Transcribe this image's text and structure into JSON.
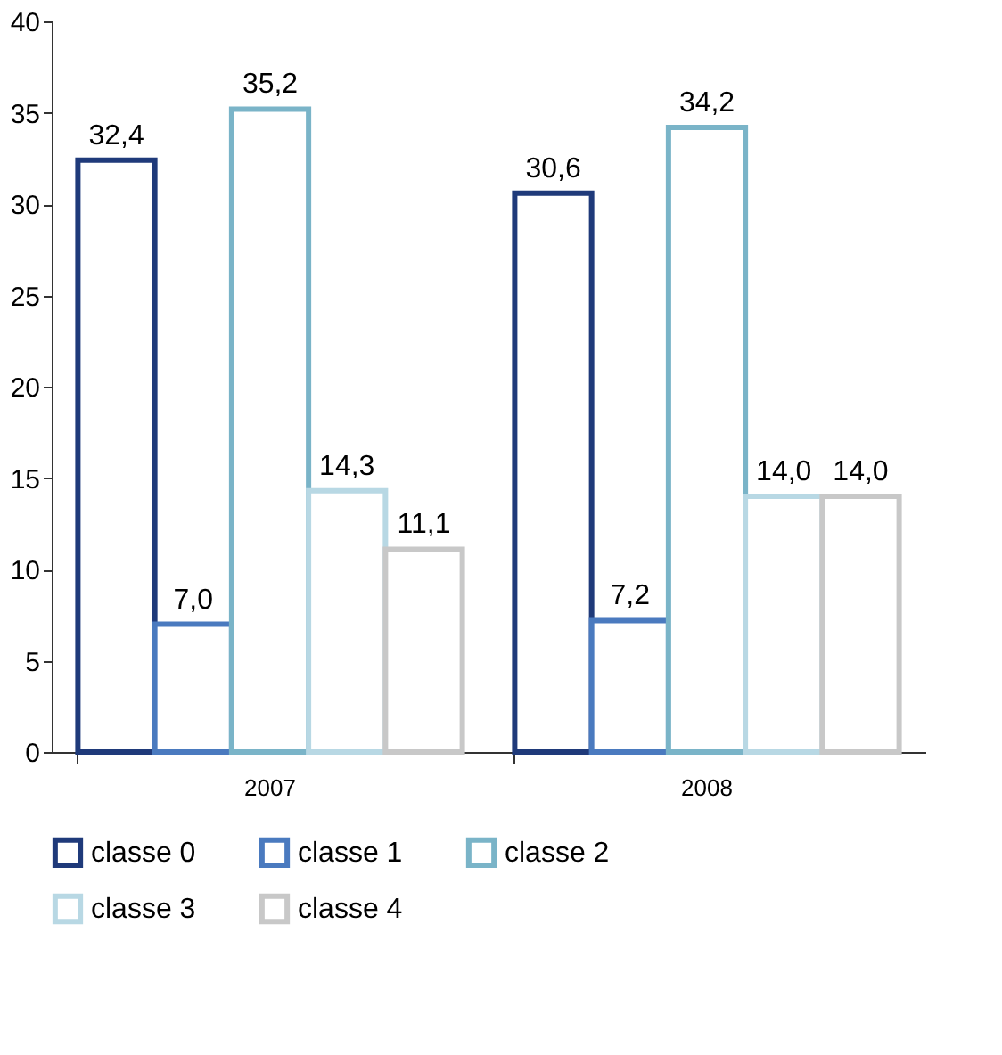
{
  "chart_data": {
    "type": "bar",
    "categories": [
      "2007",
      "2008"
    ],
    "series": [
      {
        "name": "classe 0",
        "color": "#1f3a7a",
        "values": [
          32.4,
          30.6
        ],
        "value_labels": [
          "32,4",
          "30,6"
        ]
      },
      {
        "name": "classe 1",
        "color": "#4a7abf",
        "values": [
          7.0,
          7.2
        ],
        "value_labels": [
          "7,0",
          "7,2"
        ]
      },
      {
        "name": "classe 2",
        "color": "#7ab4c8",
        "values": [
          35.2,
          34.2
        ],
        "value_labels": [
          "35,2",
          "34,2"
        ]
      },
      {
        "name": "classe 3",
        "color": "#b8d8e4",
        "values": [
          14.3,
          14.0
        ],
        "value_labels": [
          "14,3",
          "14,0"
        ]
      },
      {
        "name": "classe 4",
        "color": "#c8c8c8",
        "values": [
          11.1,
          14.0
        ],
        "value_labels": [
          "11,1",
          "14,0"
        ]
      }
    ],
    "ylim": [
      0,
      40
    ],
    "yticks": [
      0,
      5,
      10,
      15,
      20,
      25,
      30,
      35,
      40
    ],
    "grid": false,
    "legend": "bottom"
  }
}
